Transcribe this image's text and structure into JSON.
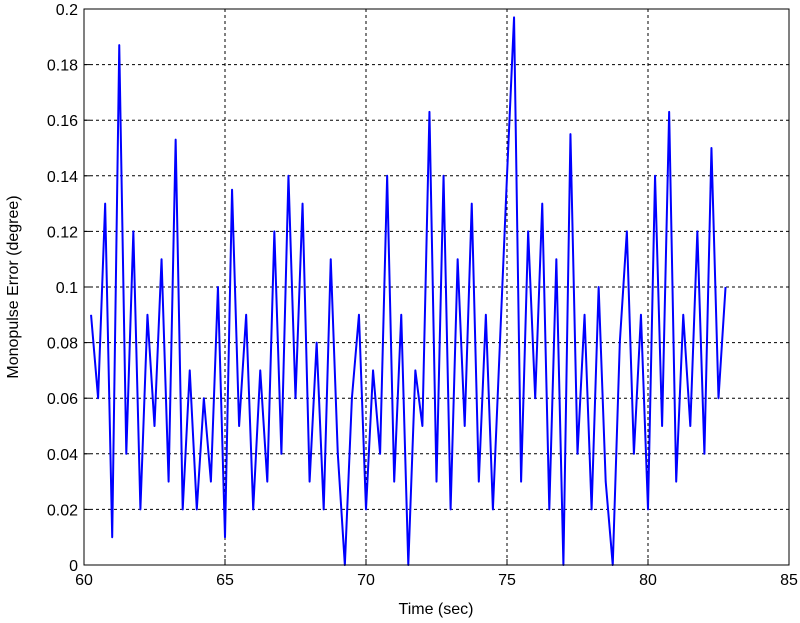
{
  "chart_data": {
    "type": "line",
    "xlabel": "Time (sec)",
    "ylabel": "Monopulse Error (degree)",
    "x": [
      60.25,
      60.5,
      60.75,
      61,
      61.25,
      61.5,
      61.75,
      62,
      62.25,
      62.5,
      62.75,
      63,
      63.25,
      63.5,
      63.75,
      64,
      64.25,
      64.5,
      64.75,
      65,
      65.25,
      65.5,
      65.75,
      66,
      66.25,
      66.5,
      66.75,
      67,
      67.25,
      67.5,
      67.75,
      68,
      68.25,
      68.5,
      68.75,
      69,
      69.25,
      69.5,
      69.75,
      70,
      70.25,
      70.5,
      70.75,
      71,
      71.25,
      71.5,
      71.75,
      72,
      72.25,
      72.5,
      72.75,
      73,
      73.25,
      73.5,
      73.75,
      74,
      74.25,
      74.5,
      74.75,
      75,
      75.25,
      75.5,
      75.75,
      76,
      76.25,
      76.5,
      76.75,
      77,
      77.25,
      77.5,
      77.75,
      78,
      78.25,
      78.5,
      78.75,
      79,
      79.25,
      79.5,
      79.75,
      80,
      80.25,
      80.5,
      80.75,
      81,
      81.25,
      81.5,
      81.75,
      82,
      82.25,
      82.5,
      82.75
    ],
    "series": [
      {
        "color": "#0000ff",
        "values": [
          0.09,
          0.06,
          0.13,
          0.01,
          0.187,
          0.04,
          0.12,
          0.02,
          0.09,
          0.05,
          0.11,
          0.03,
          0.153,
          0.02,
          0.07,
          0.02,
          0.06,
          0.03,
          0.1,
          0.01,
          0.135,
          0.05,
          0.09,
          0.02,
          0.07,
          0.03,
          0.12,
          0.04,
          0.14,
          0.06,
          0.13,
          0.03,
          0.08,
          0.02,
          0.11,
          0.04,
          0,
          0.06,
          0.09,
          0.02,
          0.07,
          0.04,
          0.14,
          0.03,
          0.09,
          0,
          0.07,
          0.05,
          0.163,
          0.03,
          0.14,
          0.02,
          0.11,
          0.05,
          0.13,
          0.03,
          0.09,
          0.02,
          0.08,
          0.14,
          0.197,
          0.03,
          0.12,
          0.06,
          0.13,
          0.02,
          0.11,
          0,
          0.155,
          0.04,
          0.09,
          0.02,
          0.1,
          0.03,
          0,
          0.08,
          0.12,
          0.04,
          0.09,
          0.02,
          0.14,
          0.05,
          0.163,
          0.03,
          0.09,
          0.05,
          0.12,
          0.04,
          0.15,
          0.06,
          0.1
        ]
      }
    ],
    "xlim": [
      60,
      85
    ],
    "xticks": [
      60,
      65,
      70,
      75,
      80,
      85
    ],
    "ylim": [
      0,
      0.2
    ],
    "yticks": [
      0,
      0.02,
      0.04,
      0.06,
      0.08,
      0.1,
      0.12,
      0.14,
      0.16,
      0.18,
      0.2
    ],
    "grid": true
  }
}
